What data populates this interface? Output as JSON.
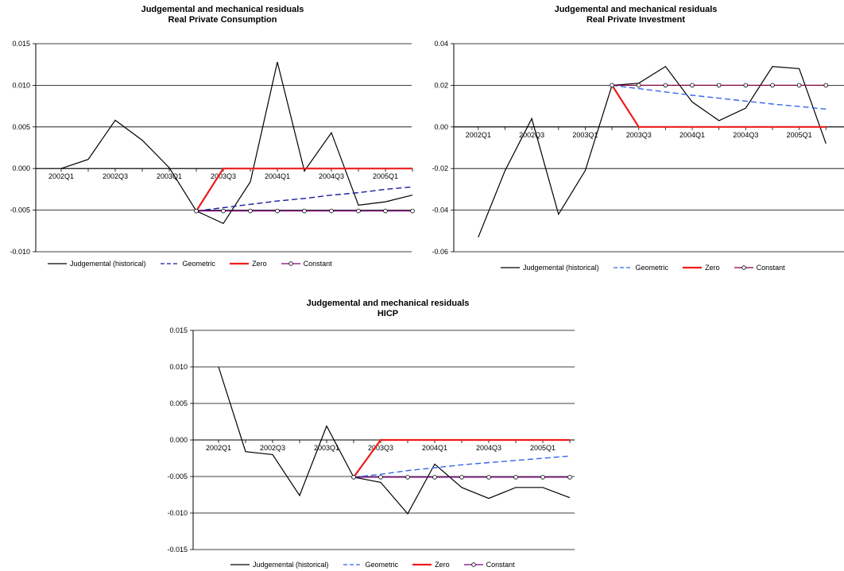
{
  "chart_data": [
    {
      "type": "line",
      "title": "Judgemental and mechanical residuals",
      "subtitle": "Real Private Consumption",
      "categories": [
        "2002Q1",
        "2002Q2",
        "2002Q3",
        "2002Q4",
        "2003Q1",
        "2003Q2",
        "2003Q3",
        "2003Q4",
        "2004Q1",
        "2004Q2",
        "2004Q3",
        "2004Q4",
        "2005Q1",
        "2005Q2"
      ],
      "x_tick_labels": [
        "2002Q1",
        "2002Q3",
        "2003Q1",
        "2003Q3",
        "2004Q1",
        "2004Q3",
        "2005Q1"
      ],
      "ylim": [
        -0.01,
        0.015
      ],
      "yticks": [
        "-0.010",
        "-0.005",
        "0.000",
        "0.005",
        "0.010",
        "0.015"
      ],
      "ytick_values": [
        -0.01,
        -0.005,
        0.0,
        0.005,
        0.01,
        0.015
      ],
      "grid": true,
      "legend_position": "bottom",
      "series": [
        {
          "name": "Judgemental (historical)",
          "color": "#000000",
          "style": "solid",
          "marker": false,
          "values": [
            0.0,
            0.0011,
            0.0058,
            0.0034,
            0.0001,
            -0.0051,
            -0.0066,
            -0.0016,
            0.0128,
            -0.0003,
            0.0043,
            -0.0044,
            -0.004,
            -0.0032
          ]
        },
        {
          "name": "Geometric",
          "color": "#1a1aa0",
          "style": "dashed",
          "marker": false,
          "values": [
            null,
            null,
            null,
            null,
            null,
            -0.0051,
            -0.0047,
            -0.0043,
            -0.0039,
            -0.0036,
            -0.0032,
            -0.0029,
            -0.0025,
            -0.0022
          ]
        },
        {
          "name": "Zero",
          "color": "#ee1c1c",
          "style": "solid",
          "marker": false,
          "values": [
            null,
            null,
            null,
            null,
            null,
            -0.0051,
            0.0,
            0.0,
            0.0,
            0.0,
            0.0,
            0.0,
            0.0,
            0.0
          ]
        },
        {
          "name": "Constant",
          "color": "#800080",
          "style": "solid",
          "marker": true,
          "values": [
            null,
            null,
            null,
            null,
            null,
            -0.0051,
            -0.0051,
            -0.0051,
            -0.0051,
            -0.0051,
            -0.0051,
            -0.0051,
            -0.0051,
            -0.0051
          ]
        }
      ]
    },
    {
      "type": "line",
      "title": "Judgemental and mechanical residuals",
      "subtitle": "Real Private Investment",
      "categories": [
        "2002Q1",
        "2002Q2",
        "2002Q3",
        "2002Q4",
        "2003Q1",
        "2003Q2",
        "2003Q3",
        "2003Q4",
        "2004Q1",
        "2004Q2",
        "2004Q3",
        "2004Q4",
        "2005Q1",
        "2005Q2"
      ],
      "x_tick_labels": [
        "2002Q1",
        "2002Q3",
        "2003Q1",
        "2003Q3",
        "2004Q1",
        "2004Q3",
        "2005Q1"
      ],
      "ylim": [
        -0.06,
        0.04
      ],
      "yticks": [
        "-0.06",
        "-0.04",
        "-0.02",
        "0.00",
        "0.02",
        "0.04"
      ],
      "ytick_values": [
        -0.06,
        -0.04,
        -0.02,
        0.0,
        0.02,
        0.04
      ],
      "grid": true,
      "legend_position": "bottom",
      "series": [
        {
          "name": "Judgemental (historical)",
          "color": "#000000",
          "style": "solid",
          "marker": false,
          "values": [
            -0.053,
            -0.021,
            0.004,
            -0.042,
            -0.021,
            0.02,
            0.021,
            0.029,
            0.012,
            0.003,
            0.009,
            0.029,
            0.028,
            -0.008
          ]
        },
        {
          "name": "Geometric",
          "color": "#3366ee",
          "style": "dashed",
          "marker": false,
          "values": [
            null,
            null,
            null,
            null,
            null,
            0.02,
            0.0184,
            0.0168,
            0.0152,
            0.0138,
            0.0124,
            0.011,
            0.0098,
            0.0086
          ]
        },
        {
          "name": "Zero",
          "color": "#ee1c1c",
          "style": "solid",
          "marker": false,
          "values": [
            null,
            null,
            null,
            null,
            null,
            0.02,
            0.0,
            0.0,
            0.0,
            0.0,
            0.0,
            0.0,
            0.0,
            0.0
          ]
        },
        {
          "name": "Constant",
          "color": "#800040",
          "style": "solid",
          "marker": true,
          "values": [
            null,
            null,
            null,
            null,
            null,
            0.02,
            0.02,
            0.02,
            0.02,
            0.02,
            0.02,
            0.02,
            0.02,
            0.02
          ]
        }
      ]
    },
    {
      "type": "line",
      "title": "Judgemental and mechanical residuals",
      "subtitle": "HICP",
      "categories": [
        "2002Q1",
        "2002Q2",
        "2002Q3",
        "2002Q4",
        "2003Q1",
        "2003Q2",
        "2003Q3",
        "2003Q4",
        "2004Q1",
        "2004Q2",
        "2004Q3",
        "2004Q4",
        "2005Q1",
        "2005Q2"
      ],
      "x_tick_labels": [
        "2002Q1",
        "2002Q3",
        "2003Q1",
        "2003Q3",
        "2004Q1",
        "2004Q3",
        "2005Q1"
      ],
      "ylim": [
        -0.015,
        0.015
      ],
      "yticks": [
        "-0.015",
        "-0.010",
        "-0.005",
        "0.000",
        "0.005",
        "0.010",
        "0.015"
      ],
      "ytick_values": [
        -0.015,
        -0.01,
        -0.005,
        0.0,
        0.005,
        0.01,
        0.015
      ],
      "grid": true,
      "legend_position": "bottom",
      "series": [
        {
          "name": "Judgemental (historical)",
          "color": "#000000",
          "style": "solid",
          "marker": false,
          "values": [
            0.01,
            -0.0016,
            -0.002,
            -0.0076,
            0.0019,
            -0.0051,
            -0.0058,
            -0.0101,
            -0.0033,
            -0.0065,
            -0.008,
            -0.0065,
            -0.0065,
            -0.0079
          ]
        },
        {
          "name": "Geometric",
          "color": "#3366ee",
          "style": "dashed",
          "marker": false,
          "values": [
            null,
            null,
            null,
            null,
            null,
            -0.0051,
            -0.0047,
            -0.0042,
            -0.0038,
            -0.0034,
            -0.0031,
            -0.0028,
            -0.0025,
            -0.0022
          ]
        },
        {
          "name": "Zero",
          "color": "#ee1c1c",
          "style": "solid",
          "marker": false,
          "values": [
            null,
            null,
            null,
            null,
            null,
            -0.0051,
            0.0,
            0.0,
            0.0,
            0.0,
            0.0,
            0.0,
            0.0,
            0.0
          ]
        },
        {
          "name": "Constant",
          "color": "#800080",
          "style": "solid",
          "marker": true,
          "values": [
            null,
            null,
            null,
            null,
            null,
            -0.0051,
            -0.0051,
            -0.0051,
            -0.0051,
            -0.0051,
            -0.0051,
            -0.0051,
            -0.0051,
            -0.0051
          ]
        }
      ]
    }
  ]
}
